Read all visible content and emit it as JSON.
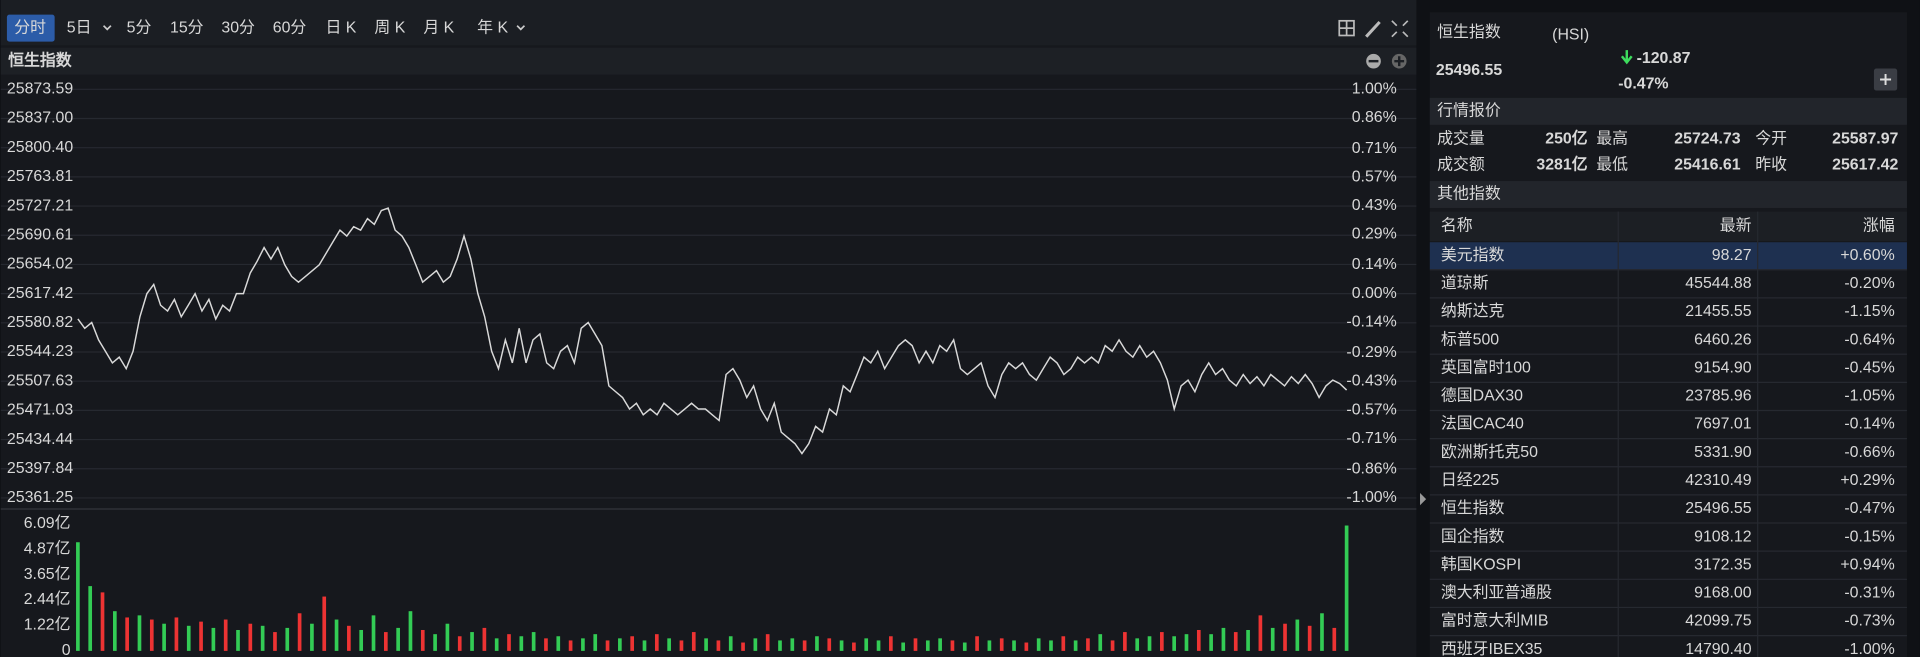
{
  "toolbar": {
    "tabs": [
      "分时",
      "5日",
      "5分",
      "15分",
      "30分",
      "60分",
      "日 K",
      "周 K",
      "月 K",
      "年 K"
    ]
  },
  "chart_data": {
    "type": "line",
    "title": "恒生指数",
    "color": "#d9d9d9",
    "grid": true,
    "values": [
      25585.6,
      25574.0,
      25581.2,
      25559.5,
      25545.1,
      25530.6,
      25537.8,
      25523.4,
      25545.1,
      25588.5,
      25617.4,
      25629.0,
      25602.9,
      25595.7,
      25610.2,
      25588.5,
      25602.9,
      25617.4,
      25595.7,
      25610.2,
      25585.6,
      25602.9,
      25595.7,
      25617.4,
      25617.4,
      25643.4,
      25657.9,
      25675.3,
      25660.8,
      25675.3,
      25653.6,
      25639.1,
      25631.9,
      25639.1,
      25646.3,
      25653.6,
      25668.0,
      25682.5,
      25697.0,
      25689.7,
      25701.3,
      25697.0,
      25711.4,
      25704.2,
      25721.6,
      25724.7,
      25697.0,
      25689.7,
      25675.3,
      25653.6,
      25631.9,
      25639.1,
      25646.3,
      25631.9,
      25639.1,
      25660.8,
      25689.7,
      25660.8,
      25617.4,
      25588.5,
      25545.1,
      25523.4,
      25559.5,
      25530.6,
      25574.0,
      25530.6,
      25559.5,
      25566.8,
      25530.6,
      25523.4,
      25545.1,
      25552.3,
      25530.6,
      25574.0,
      25581.2,
      25566.8,
      25552.3,
      25501.7,
      25494.4,
      25487.2,
      25472.7,
      25480.0,
      25465.5,
      25472.7,
      25465.5,
      25480.0,
      25472.7,
      25465.5,
      25472.7,
      25480.0,
      25472.7,
      25472.7,
      25465.5,
      25458.3,
      25516.1,
      25523.4,
      25508.9,
      25487.2,
      25501.7,
      25472.7,
      25458.3,
      25480.0,
      25443.8,
      25436.6,
      25429.3,
      25417.0,
      25429.3,
      25451.0,
      25443.8,
      25472.7,
      25465.5,
      25501.7,
      25494.4,
      25516.1,
      25537.8,
      25530.6,
      25545.1,
      25523.4,
      25537.8,
      25552.3,
      25559.5,
      25552.3,
      25530.6,
      25545.1,
      25530.6,
      25552.3,
      25545.1,
      25559.5,
      25523.4,
      25516.1,
      25523.4,
      25530.6,
      25501.7,
      25487.2,
      25516.1,
      25530.6,
      25523.4,
      25530.6,
      25516.1,
      25508.9,
      25523.4,
      25537.8,
      25530.6,
      25516.1,
      25523.4,
      25537.8,
      25530.6,
      25537.8,
      25530.6,
      25552.3,
      25545.1,
      25559.5,
      25545.1,
      25537.8,
      25552.3,
      25537.8,
      25545.1,
      25530.6,
      25508.9,
      25472.7,
      25501.7,
      25508.9,
      25494.4,
      25516.1,
      25530.6,
      25516.1,
      25523.4,
      25508.9,
      25501.7,
      25516.1,
      25504.6,
      25513.2,
      25501.7,
      25516.1,
      25508.9,
      25501.7,
      25513.2,
      25504.6,
      25516.1,
      25504.6,
      25487.2,
      25501.7,
      25508.9,
      25504.6,
      25496.55
    ],
    "ylim": [
      25361.25,
      25873.59
    ],
    "yticks": [
      25873.59,
      {
        "value": 25837.0,
        "label": "25837.00"
      },
      {
        "value": 25800.4,
        "label": "25800.40"
      },
      25763.81,
      25727.21,
      25690.61,
      25654.02,
      25617.42,
      25580.82,
      25544.23,
      25507.63,
      25471.03,
      25434.44,
      25397.84,
      25361.25
    ],
    "y2lim": [
      -1.0,
      1.0
    ],
    "y2ticks": [
      {
        "value": 1.0,
        "label": "1.00%"
      },
      {
        "value": 0.86,
        "label": "0.86%"
      },
      {
        "value": 0.71,
        "label": "0.71%"
      },
      {
        "value": 0.57,
        "label": "0.57%"
      },
      {
        "value": 0.43,
        "label": "0.43%"
      },
      {
        "value": 0.29,
        "label": "0.29%"
      },
      {
        "value": 0.14,
        "label": "0.14%"
      },
      {
        "value": 0,
        "label": "0.00%"
      },
      {
        "value": -0.14,
        "label": "-0.14%"
      },
      {
        "value": -0.29,
        "label": "-0.29%"
      },
      {
        "value": -0.43,
        "label": "-0.43%"
      },
      {
        "value": -0.57,
        "label": "-0.57%"
      },
      {
        "value": -0.71,
        "label": "-0.71%"
      },
      {
        "value": -0.86,
        "label": "-0.86%"
      },
      {
        "value": -1.0,
        "label": "-1.00%"
      }
    ],
    "volume": {
      "type": "bar",
      "values": [
        5.2,
        3.1,
        2.8,
        1.9,
        1.6,
        1.7,
        1.5,
        1.3,
        1.6,
        1.2,
        1.4,
        1.1,
        1.5,
        1.0,
        1.3,
        1.2,
        0.9,
        1.1,
        1.8,
        1.3,
        2.6,
        1.5,
        1.2,
        1.0,
        1.7,
        0.9,
        1.1,
        1.9,
        1.0,
        0.8,
        1.3,
        0.7,
        0.9,
        1.1,
        0.6,
        0.8,
        0.7,
        0.9,
        0.6,
        0.7,
        0.5,
        0.6,
        0.8,
        0.5,
        0.6,
        0.7,
        0.5,
        0.8,
        0.6,
        0.5,
        0.9,
        0.6,
        0.5,
        0.7,
        0.4,
        0.6,
        0.8,
        0.5,
        0.6,
        0.5,
        0.7,
        0.6,
        0.5,
        0.4,
        0.6,
        0.5,
        0.7,
        0.4,
        0.6,
        0.5,
        0.6,
        0.5,
        0.4,
        0.7,
        0.5,
        0.6,
        0.5,
        0.4,
        0.6,
        0.5,
        0.7,
        0.5,
        0.6,
        0.8,
        0.5,
        0.9,
        0.6,
        0.7,
        0.9,
        0.7,
        0.8,
        1.0,
        0.8,
        1.1,
        0.9,
        1.0,
        1.7,
        1.1,
        1.3,
        1.5,
        1.2,
        1.8,
        1.1,
        6.0
      ],
      "colors": [
        "#3c5",
        "#3c5",
        "#e33",
        "#3c5",
        "#e33",
        "#3c5",
        "#e33",
        "#3c5",
        "#e33",
        "#3c5",
        "#e33",
        "#3c5",
        "#e33",
        "#3c5",
        "#e33",
        "#3c5",
        "#e33",
        "#3c5",
        "#e33",
        "#3c5",
        "#e33",
        "#3c5",
        "#e33",
        "#3c5",
        "#3c5",
        "#e33",
        "#3c5",
        "#3c5",
        "#e33",
        "#3c5",
        "#3c5",
        "#e33",
        "#3c5",
        "#e33",
        "#3c5",
        "#e33",
        "#3c5",
        "#3c5",
        "#e33",
        "#3c5",
        "#e33",
        "#3c5",
        "#3c5",
        "#e33",
        "#3c5",
        "#e33",
        "#3c5",
        "#e33",
        "#3c5",
        "#e33",
        "#e33",
        "#3c5",
        "#e33",
        "#3c5",
        "#e33",
        "#3c5",
        "#e33",
        "#3c5",
        "#3c5",
        "#e33",
        "#3c5",
        "#e33",
        "#3c5",
        "#e33",
        "#3c5",
        "#3c5",
        "#e33",
        "#3c5",
        "#e33",
        "#3c5",
        "#3c5",
        "#e33",
        "#3c5",
        "#e33",
        "#3c5",
        "#e33",
        "#3c5",
        "#e33",
        "#3c5",
        "#3c5",
        "#e33",
        "#3c5",
        "#e33",
        "#3c5",
        "#e33",
        "#e33",
        "#3c5",
        "#3c5",
        "#e33",
        "#3c5",
        "#3c5",
        "#e33",
        "#3c5",
        "#3c5",
        "#e33",
        "#3c5",
        "#e33",
        "#3c5",
        "#e33",
        "#3c5",
        "#e33",
        "#3c5",
        "#e33",
        "#3c5"
      ],
      "ylim": [
        0,
        6.09
      ],
      "yticks": [
        0,
        {
          "value": 1.22,
          "label": "1.22亿"
        },
        {
          "value": 2.44,
          "label": "2.44亿"
        },
        {
          "value": 3.65,
          "label": "3.65亿"
        },
        {
          "value": 4.87,
          "label": "4.87亿"
        },
        {
          "value": 6.09,
          "label": "6.09亿"
        }
      ]
    }
  },
  "header": {
    "name": "恒生指数",
    "code": "(HSI)",
    "price": "25496.55",
    "change": "-120.87",
    "change_pct": "-0.47%"
  },
  "quote": {
    "title": "行情报价",
    "rows": [
      [
        "成交量",
        "250亿",
        "最高",
        "25724.73",
        "今开",
        "25587.97"
      ],
      [
        "成交额",
        "3281亿",
        "最低",
        "25416.61",
        "昨收",
        "25617.42"
      ]
    ]
  },
  "others": {
    "title": "其他指数",
    "header": [
      "名称",
      "最新",
      "涨幅"
    ],
    "rows": [
      [
        "美元指数",
        "98.27",
        "+0.60%"
      ],
      [
        "道琼斯",
        "45544.88",
        "-0.20%"
      ],
      [
        "纳斯达克",
        "21455.55",
        "-1.15%"
      ],
      [
        "标普500",
        "6460.26",
        "-0.64%"
      ],
      [
        "英国富时100",
        "9154.90",
        "-0.45%"
      ],
      [
        "德国DAX30",
        "23785.96",
        "-1.05%"
      ],
      [
        "法国CAC40",
        "7697.01",
        "-0.14%"
      ],
      [
        "欧洲斯托克50",
        "5331.90",
        "-0.66%"
      ],
      [
        "日经225",
        "42310.49",
        "+0.29%"
      ],
      [
        "恒生指数",
        "25496.55",
        "-0.47%"
      ],
      [
        "国企指数",
        "9108.12",
        "-0.15%"
      ],
      [
        "韩国KOSPI",
        "3172.35",
        "+0.94%"
      ],
      [
        "澳大利亚普通股",
        "9168.00",
        "-0.31%"
      ],
      [
        "富时意大利MIB",
        "42099.75",
        "-0.73%"
      ],
      [
        "西班牙IBEX35",
        "14790.40",
        "-1.00%"
      ]
    ]
  }
}
